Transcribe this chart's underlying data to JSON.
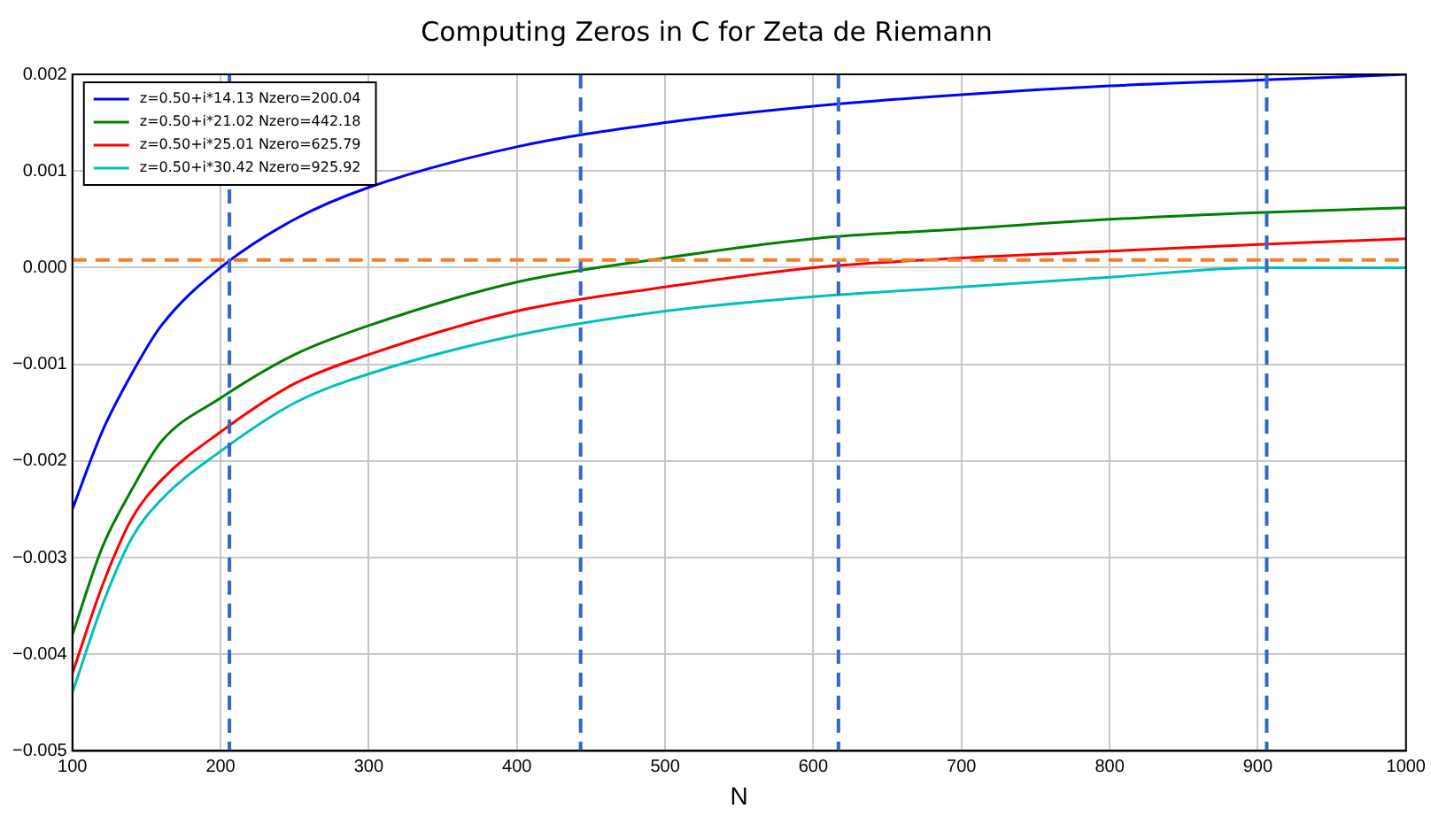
{
  "chart_data": {
    "type": "line",
    "title": "Computing Zeros in C for Zeta de Riemann",
    "xlabel": "N",
    "x": [
      100,
      120,
      140,
      160,
      200,
      250,
      300,
      400,
      500,
      600,
      700,
      800,
      900,
      1000
    ],
    "series": [
      {
        "name": "z=0.50+i*14.13 Nzero=200.04",
        "color": "#0000ff",
        "values": [
          -0.0025,
          -0.0017,
          -0.0011,
          -0.0006,
          0.0,
          0.0005,
          0.00083,
          0.00125,
          0.0015,
          0.00167,
          0.00179,
          0.00188,
          0.00194,
          0.002
        ]
      },
      {
        "name": "z=0.50+i*21.02 Nzero=442.18",
        "color": "#008000",
        "values": [
          -0.0038,
          -0.0029,
          -0.0023,
          -0.0018,
          -0.00135,
          -0.0009,
          -0.0006,
          -0.00015,
          0.0001,
          0.0003,
          0.0004,
          0.0005,
          0.00057,
          0.00062
        ]
      },
      {
        "name": "z=0.50+i*25.01 Nzero=625.79",
        "color": "#ff0000",
        "values": [
          -0.0042,
          -0.0033,
          -0.0026,
          -0.0022,
          -0.0017,
          -0.0012,
          -0.0009,
          -0.00045,
          -0.0002,
          0.0,
          0.0001,
          0.00017,
          0.00024,
          0.0003
        ]
      },
      {
        "name": "z=0.50+i*30.42 Nzero=925.92",
        "color": "#00bfbf",
        "values": [
          -0.0044,
          -0.0035,
          -0.0028,
          -0.0024,
          -0.0019,
          -0.0014,
          -0.0011,
          -0.0007,
          -0.00045,
          -0.0003,
          -0.0002,
          -0.0001,
          0.0,
          0.0
        ]
      }
    ],
    "xlim": [
      100,
      1000
    ],
    "xticks": [
      100,
      200,
      300,
      400,
      500,
      600,
      700,
      800,
      900,
      1000
    ],
    "ylim": [
      -0.005,
      0.002
    ],
    "yticks": [
      {
        "value": -0.005,
        "label": "−0.005"
      },
      {
        "value": -0.004,
        "label": "−0.004"
      },
      {
        "value": -0.003,
        "label": "−0.003"
      },
      {
        "value": -0.002,
        "label": "−0.002"
      },
      {
        "value": -0.001,
        "label": "−0.001"
      },
      {
        "value": 0,
        "label": "0.000"
      },
      {
        "value": 0.001,
        "label": "0.001"
      },
      {
        "value": 0.002,
        "label": "0.002"
      }
    ],
    "ref_lines": [
      {
        "axis": "x",
        "value": 206,
        "color": "#3366cc",
        "line_style": "dashed"
      },
      {
        "axis": "x",
        "value": 443,
        "color": "#3366cc",
        "line_style": "dashed"
      },
      {
        "axis": "x",
        "value": 617,
        "color": "#3366cc",
        "line_style": "dashed"
      },
      {
        "axis": "x",
        "value": 906,
        "color": "#3366cc",
        "line_style": "dashed"
      },
      {
        "axis": "y",
        "value": 8e-05,
        "color": "#ee7f2d",
        "line_style": "dashed"
      }
    ],
    "grid": true,
    "legend": "top left",
    "marker": "none",
    "line_style": "solid"
  }
}
